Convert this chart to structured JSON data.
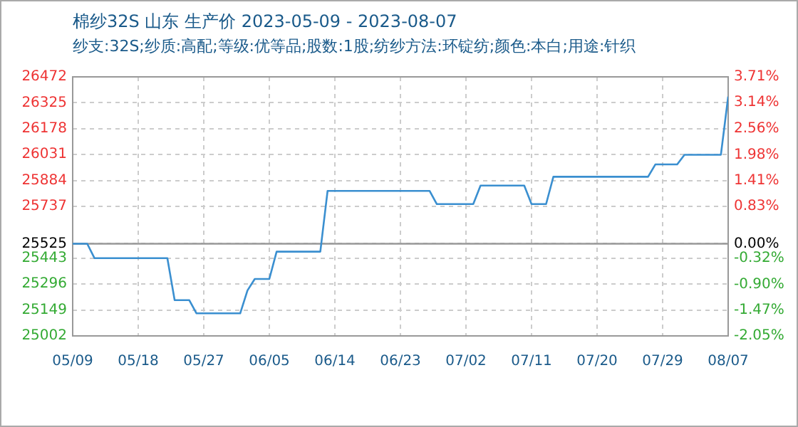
{
  "chart_data": {
    "type": "line",
    "title": "棉纱32S 山东 生产价 2023-05-09 - 2023-08-07",
    "subtitle": "纱支:32S;纱质:高配;等级:优等品;股数:1股;纺纱方法:环锭纺;颜色:本白;用途:针织",
    "x": [
      "2023-05-09",
      "2023-05-11",
      "2023-05-12",
      "2023-05-22",
      "2023-05-23",
      "2023-05-25",
      "2023-05-26",
      "2023-06-01",
      "2023-06-02",
      "2023-06-03",
      "2023-06-05",
      "2023-06-06",
      "2023-06-12",
      "2023-06-13",
      "2023-06-27",
      "2023-06-28",
      "2023-07-03",
      "2023-07-04",
      "2023-07-10",
      "2023-07-11",
      "2023-07-13",
      "2023-07-14",
      "2023-07-27",
      "2023-07-28",
      "2023-07-31",
      "2023-08-01",
      "2023-08-06",
      "2023-08-07"
    ],
    "series": [
      {
        "color": "#3a8fd0",
        "values": [
          25525,
          25525,
          25443,
          25443,
          25205,
          25205,
          25130,
          25130,
          25260,
          25325,
          25325,
          25480,
          25480,
          25825,
          25825,
          25750,
          25750,
          25855,
          25855,
          25750,
          25750,
          25905,
          25905,
          25975,
          25975,
          26030,
          26030,
          26360
        ]
      }
    ],
    "xlim": [
      "2023-05-09",
      "2023-08-07"
    ],
    "xticks": [
      {
        "value": "2023-05-09",
        "label": "05/09"
      },
      {
        "value": "2023-05-18",
        "label": "05/18"
      },
      {
        "value": "2023-05-27",
        "label": "05/27"
      },
      {
        "value": "2023-06-05",
        "label": "06/05"
      },
      {
        "value": "2023-06-14",
        "label": "06/14"
      },
      {
        "value": "2023-06-23",
        "label": "06/23"
      },
      {
        "value": "2023-07-02",
        "label": "07/02"
      },
      {
        "value": "2023-07-11",
        "label": "07/11"
      },
      {
        "value": "2023-07-20",
        "label": "07/20"
      },
      {
        "value": "2023-07-29",
        "label": "07/29"
      },
      {
        "value": "2023-08-07",
        "label": "08/07"
      }
    ],
    "ylim": [
      25002,
      26472
    ],
    "yticks": [
      25002,
      25149,
      25296,
      25443,
      25525,
      25737,
      25884,
      26031,
      26178,
      26325,
      26472
    ],
    "y2lim": [
      -2.05,
      3.71
    ],
    "y2ticks": [
      {
        "value": -2.05,
        "label": "-2.05%"
      },
      {
        "value": -1.47,
        "label": "-1.47%"
      },
      {
        "value": -0.9,
        "label": "-0.90%"
      },
      {
        "value": -0.32,
        "label": "-0.32%"
      },
      {
        "value": 0,
        "label": "0.00%"
      },
      {
        "value": 0.83,
        "label": "0.83%"
      },
      {
        "value": 1.41,
        "label": "1.41%"
      },
      {
        "value": 1.98,
        "label": "1.98%"
      },
      {
        "value": 2.56,
        "label": "2.56%"
      },
      {
        "value": 3.14,
        "label": "3.14%"
      },
      {
        "value": 3.71,
        "label": "3.71%"
      }
    ],
    "ref_lines": [
      {
        "axis": "y",
        "value": 25525,
        "color": "#999999"
      }
    ],
    "grid": true,
    "legend": false,
    "marker": "none",
    "line_style": "solid"
  }
}
